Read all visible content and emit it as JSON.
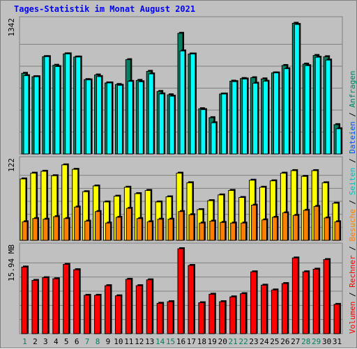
{
  "title": "Tages-Statistik im Monat August 2021",
  "chart_data": [
    {
      "type": "bar",
      "panel": "top",
      "y_label": "1342",
      "ylim": [
        0,
        1342
      ],
      "series": [
        {
          "name": "Anfragen",
          "color": "#008060",
          "values": [
            822,
            787,
            992,
            904,
            1020,
            988,
            758,
            805,
            724,
            708,
            961,
            750,
            842,
            637,
            603,
            1230,
            1019,
            461,
            370,
            611,
            742,
            769,
            777,
            765,
            826,
            902,
            1332,
            916,
            1004,
            991,
            299
          ]
        },
        {
          "name": "Dateien",
          "color": "#00ffff",
          "values": [
            798,
            787,
            992,
            891,
            1020,
            988,
            755,
            789,
            724,
            700,
            740,
            736,
            816,
            612,
            589,
            1050,
            1019,
            452,
            318,
            611,
            737,
            764,
            721,
            741,
            826,
            869,
            1320,
            900,
            986,
            957,
            257
          ]
        }
      ]
    },
    {
      "type": "bar",
      "panel": "middle",
      "y_label": "122",
      "ylim": [
        0,
        122
      ],
      "series": [
        {
          "name": "Seiten",
          "color": "#ffff00",
          "values": [
            96,
            105,
            108,
            101,
            118,
            111,
            76,
            85,
            60,
            69,
            83,
            73,
            78,
            60,
            68,
            105,
            90,
            48,
            62,
            71,
            78,
            67,
            94,
            83,
            93,
            105,
            109,
            100,
            109,
            90,
            58
          ]
        },
        {
          "name": "Besuche",
          "color": "#ff8000",
          "values": [
            29,
            34,
            33,
            37,
            34,
            52,
            30,
            45,
            27,
            36,
            50,
            34,
            29,
            33,
            33,
            45,
            40,
            27,
            30,
            28,
            27,
            27,
            55,
            32,
            36,
            43,
            39,
            47,
            53,
            35,
            29
          ]
        }
      ]
    },
    {
      "type": "bar",
      "panel": "bottom",
      "y_label": "15.94 MB",
      "ylim": [
        0,
        15.94
      ],
      "series": [
        {
          "name": "Volumen",
          "color": "#ff0000",
          "values": [
            12.5,
            10.0,
            10.5,
            10.3,
            13.0,
            12.0,
            7.2,
            7.2,
            9.0,
            7.1,
            10.2,
            9.0,
            10.1,
            5.7,
            6.0,
            16.0,
            12.8,
            5.8,
            7.4,
            6.0,
            6.9,
            7.5,
            11.6,
            9.1,
            8.2,
            9.4,
            14.2,
            11.6,
            12.1,
            13.9,
            5.5
          ]
        },
        {
          "name": "Rechner",
          "color": "#ff0000",
          "values": []
        }
      ]
    }
  ],
  "x_labels": [
    "1",
    "2",
    "3",
    "4",
    "5",
    "6",
    "7",
    "8",
    "9",
    "10",
    "11",
    "12",
    "13",
    "14",
    "15",
    "16",
    "17",
    "18",
    "19",
    "20",
    "21",
    "22",
    "23",
    "24",
    "25",
    "26",
    "27",
    "28",
    "29",
    "30",
    "31"
  ],
  "weekend_days": [
    1,
    7,
    8,
    14,
    15,
    21,
    22,
    28,
    29
  ],
  "label_colors": {
    "weekday": "#000000",
    "weekend": "#008060"
  },
  "right_legend": {
    "top_prefix": "Volumen",
    "top_parts": [
      {
        "text": "Volumen",
        "color": "#ff0000"
      },
      {
        "text": "Rechner",
        "color": "#ff0000"
      },
      {
        "text": "Besuche",
        "color": "#ff8000"
      },
      {
        "text": "Seiten",
        "color": "#00c0c0"
      },
      {
        "text": "Dateien",
        "color": "#0050ff"
      },
      {
        "text": "Anfragen",
        "color": "#008060"
      }
    ],
    "separator": " / "
  }
}
